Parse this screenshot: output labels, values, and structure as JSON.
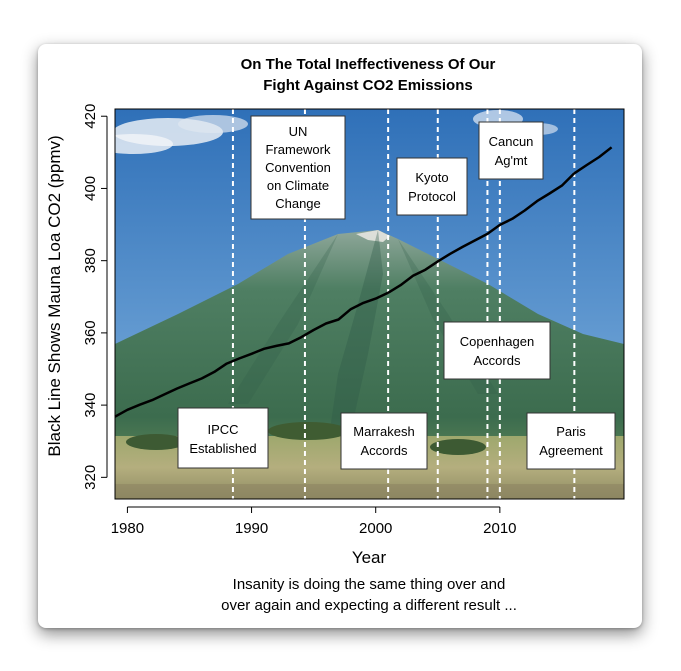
{
  "chart_data": {
    "type": "line",
    "title_lines": [
      "On The Total Ineffectiveness Of Our",
      "Fight Against CO2 Emissions"
    ],
    "xlabel": "Year",
    "ylabel": "Black Line Shows Mauna Loa CO2 (ppmv)",
    "xlim": [
      1979,
      2020
    ],
    "ylim": [
      314,
      422
    ],
    "x_ticks": [
      "1980",
      "1990",
      "2000",
      "2010"
    ],
    "x_tick_values": [
      1980,
      1990,
      2000,
      2010
    ],
    "y_ticks": [
      "320",
      "340",
      "360",
      "380",
      "400",
      "420"
    ],
    "y_tick_values": [
      320,
      340,
      360,
      380,
      400,
      420
    ],
    "grid": false,
    "background": "photo of a mountain under blue sky with savanna in foreground",
    "series": [
      {
        "color": "#000000",
        "x": [
          1979,
          1980,
          1981,
          1982,
          1983,
          1984,
          1985,
          1986,
          1987,
          1988,
          1989,
          1990,
          1991,
          1992,
          1993,
          1994,
          1995,
          1996,
          1997,
          1998,
          1999,
          2000,
          2001,
          2002,
          2003,
          2004,
          2005,
          2006,
          2007,
          2008,
          2009,
          2010,
          2011,
          2012,
          2013,
          2014,
          2015,
          2016,
          2017,
          2018,
          2019
        ],
        "values": [
          336.8,
          338.7,
          340.1,
          341.4,
          343.0,
          344.6,
          346.0,
          347.4,
          349.2,
          351.5,
          352.9,
          354.2,
          355.6,
          356.4,
          357.1,
          358.8,
          360.8,
          362.6,
          363.7,
          366.6,
          368.3,
          369.5,
          371.1,
          373.2,
          375.8,
          377.5,
          379.8,
          381.9,
          383.8,
          385.6,
          387.4,
          389.9,
          391.6,
          393.9,
          396.5,
          398.6,
          400.8,
          404.2,
          406.5,
          408.7,
          411.4
        ]
      }
    ],
    "events": [
      {
        "label": "IPCC Established",
        "year": 1988.5
      },
      {
        "label": "UN Framework Convention on Climate Change",
        "year": 1994.3
      },
      {
        "label": "Marrakesh Accords",
        "year": 2001
      },
      {
        "label": "Kyoto Protocol",
        "year": 2005
      },
      {
        "label": "Copenhagen Accords",
        "year": 2009
      },
      {
        "label": "Cancun Ag'mt",
        "year": 2010
      },
      {
        "label": "Paris Agreement",
        "year": 2016
      }
    ],
    "annotations": [
      {
        "lines": [
          "IPCC",
          "Established"
        ]
      },
      {
        "lines": [
          "UN",
          "Framework",
          "Convention",
          "on Climate",
          "Change"
        ]
      },
      {
        "lines": [
          "Marrakesh",
          "Accords"
        ]
      },
      {
        "lines": [
          "Kyoto",
          "Protocol"
        ]
      },
      {
        "lines": [
          "Copenhagen",
          "Accords"
        ]
      },
      {
        "lines": [
          "Cancun",
          "Ag'mt"
        ]
      },
      {
        "lines": [
          "Paris",
          "Agreement"
        ]
      }
    ],
    "caption_lines": [
      "Insanity is doing the same thing over and",
      "over again and expecting a different result ..."
    ]
  },
  "colors": {
    "line": "#000000",
    "event_lines": "#ffffff",
    "sky_top": "#2f70b8",
    "sky_bottom": "#7fb0dc",
    "mountain": "#4e7f5e",
    "mountain_dark": "#2f5a47",
    "ground": "#a8a776"
  }
}
